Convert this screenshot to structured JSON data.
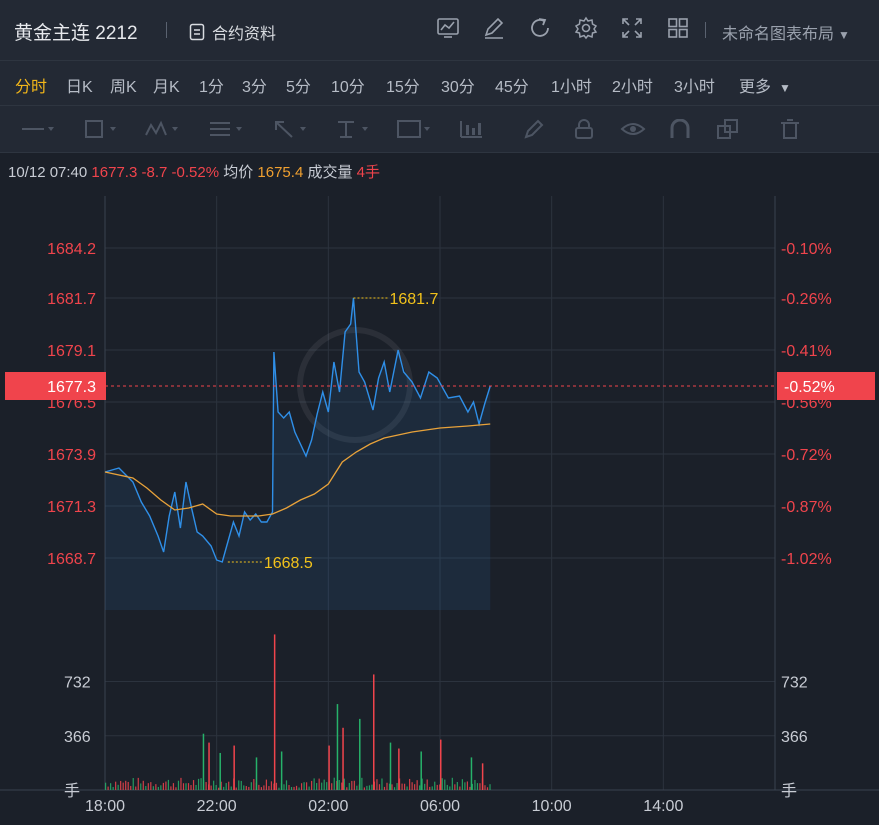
{
  "header": {
    "title": "黄金主连 2212",
    "contract_label": "合约资料",
    "layout_label": "未命名图表布局",
    "icons": [
      "chart-icon",
      "edit-icon",
      "refresh-icon",
      "settings-icon",
      "fullscreen-icon",
      "grid-icon"
    ]
  },
  "periods": [
    {
      "label": "分时",
      "active": true
    },
    {
      "label": "日K"
    },
    {
      "label": "周K"
    },
    {
      "label": "月K"
    },
    {
      "label": "1分"
    },
    {
      "label": "3分"
    },
    {
      "label": "5分"
    },
    {
      "label": "10分"
    },
    {
      "label": "15分"
    },
    {
      "label": "30分"
    },
    {
      "label": "45分"
    },
    {
      "label": "1小时"
    },
    {
      "label": "2小时"
    },
    {
      "label": "3小时"
    },
    {
      "label": "更多"
    }
  ],
  "tools": [
    "line-tool-icon",
    "rect-tool-icon",
    "pattern-tool-icon",
    "fib-tool-icon",
    "arrow-tool-icon",
    "measure-tool-icon",
    "text-tool-icon",
    "indicator-tool-icon",
    "pen-tool-icon",
    "lock-icon",
    "eye-icon",
    "magnet-icon",
    "clone-icon",
    "trash-icon"
  ],
  "info": {
    "datetime": "10/12 07:40",
    "price": "1677.3",
    "change": "-8.7",
    "change_pct": "-0.52%",
    "avg_label": "均价",
    "avg": "1675.4",
    "vol_label": "成交量",
    "vol": "4手"
  },
  "colors": {
    "price_line": "#2f8fe8",
    "avg_line": "#e8a23a",
    "down": "#f0444c",
    "up": "#26b26a",
    "annotation": "#f2c21b"
  },
  "chart_data": {
    "type": "line",
    "price_axis": {
      "ticks": [
        1684.2,
        1681.7,
        1679.1,
        1676.5,
        1673.9,
        1671.3,
        1668.7
      ],
      "pct_ticks": [
        "-0.10%",
        "-0.26%",
        "-0.41%",
        "-0.56%",
        "-0.72%",
        "-0.87%",
        "-1.02%"
      ],
      "ylim": [
        1666.1,
        1686.8
      ]
    },
    "time_axis": {
      "ticks": [
        "18:00",
        "22:00",
        "02:00",
        "06:00",
        "10:00",
        "14:00"
      ],
      "xlim_hours": [
        0,
        24
      ]
    },
    "current": {
      "price": 1677.3,
      "pct": "-0.52%"
    },
    "high": {
      "label": "1681.7",
      "value": 1681.7,
      "hour": 8.9
    },
    "low": {
      "label": "1668.5",
      "value": 1668.5,
      "hour": 4.4
    },
    "series": [
      {
        "role": "price",
        "x": [
          0,
          0.5,
          1,
          1.3,
          1.6,
          1.9,
          2.1,
          2.3,
          2.5,
          2.7,
          2.9,
          3.1,
          3.3,
          3.5,
          3.8,
          4,
          4.2,
          4.4,
          4.6,
          4.8,
          5,
          5.2,
          5.4,
          5.6,
          5.8,
          6,
          6.05,
          6.2,
          6.4,
          6.6,
          6.8,
          7.2,
          7.4,
          7.6,
          7.8,
          8,
          8.2,
          8.4,
          8.6,
          8.8,
          8.9,
          9.1,
          9.3,
          9.6,
          9.8,
          10,
          10.2,
          10.5,
          10.7,
          11,
          11.3,
          11.6,
          11.9,
          12.3,
          12.7,
          13,
          13.2,
          13.4,
          13.6,
          13.8
        ],
        "y": [
          1673.0,
          1673.2,
          1672.5,
          1671.5,
          1670.8,
          1669.8,
          1669.0,
          1670.8,
          1672.0,
          1670.2,
          1672.5,
          1671.2,
          1670.0,
          1669.8,
          1669.3,
          1668.6,
          1668.5,
          1669.5,
          1670.5,
          1669.8,
          1671.0,
          1670.6,
          1670.9,
          1670.5,
          1670.5,
          1671.0,
          1679.0,
          1676.0,
          1675.7,
          1676.0,
          1675.0,
          1673.8,
          1674.6,
          1675.9,
          1677.0,
          1676.0,
          1678.5,
          1677.0,
          1680.0,
          1680.4,
          1681.7,
          1678.0,
          1677.5,
          1676.1,
          1677.7,
          1678.5,
          1677.0,
          1679.1,
          1678.0,
          1677.5,
          1676.7,
          1678.0,
          1677.7,
          1676.7,
          1676.8,
          1676.0,
          1676.5,
          1675.4,
          1676.4,
          1677.3
        ]
      },
      {
        "role": "average",
        "x": [
          0,
          1,
          1.5,
          2,
          2.5,
          3,
          3.5,
          4,
          4.5,
          5,
          5.5,
          6,
          6.5,
          7,
          7.5,
          8,
          8.5,
          9,
          9.5,
          10,
          11,
          12,
          13,
          13.8
        ],
        "y": [
          1673.0,
          1672.7,
          1672.2,
          1671.6,
          1671.1,
          1671.2,
          1671.4,
          1670.9,
          1670.8,
          1670.8,
          1670.8,
          1670.9,
          1671.2,
          1671.6,
          1671.9,
          1672.4,
          1673.5,
          1674.0,
          1674.4,
          1674.7,
          1675.0,
          1675.2,
          1675.3,
          1675.4
        ]
      }
    ],
    "volume": {
      "ticks": [
        "732",
        "366",
        "手"
      ],
      "tick_values": [
        732,
        366,
        0
      ],
      "ylim": [
        0,
        1080
      ],
      "spikes": [
        {
          "hour": 3.5,
          "value": 380
        },
        {
          "hour": 3.7,
          "value": 320
        },
        {
          "hour": 4.1,
          "value": 250
        },
        {
          "hour": 4.6,
          "value": 300
        },
        {
          "hour": 5.4,
          "value": 220
        },
        {
          "hour": 6.05,
          "value": 1050
        },
        {
          "hour": 6.3,
          "value": 260
        },
        {
          "hour": 8.0,
          "value": 300
        },
        {
          "hour": 8.3,
          "value": 580
        },
        {
          "hour": 8.5,
          "value": 420
        },
        {
          "hour": 9.1,
          "value": 480
        },
        {
          "hour": 9.6,
          "value": 780
        },
        {
          "hour": 10.2,
          "value": 320
        },
        {
          "hour": 10.5,
          "value": 280
        },
        {
          "hour": 11.3,
          "value": 260
        },
        {
          "hour": 12.0,
          "value": 340
        },
        {
          "hour": 13.1,
          "value": 220
        },
        {
          "hour": 13.5,
          "value": 180
        }
      ]
    }
  }
}
